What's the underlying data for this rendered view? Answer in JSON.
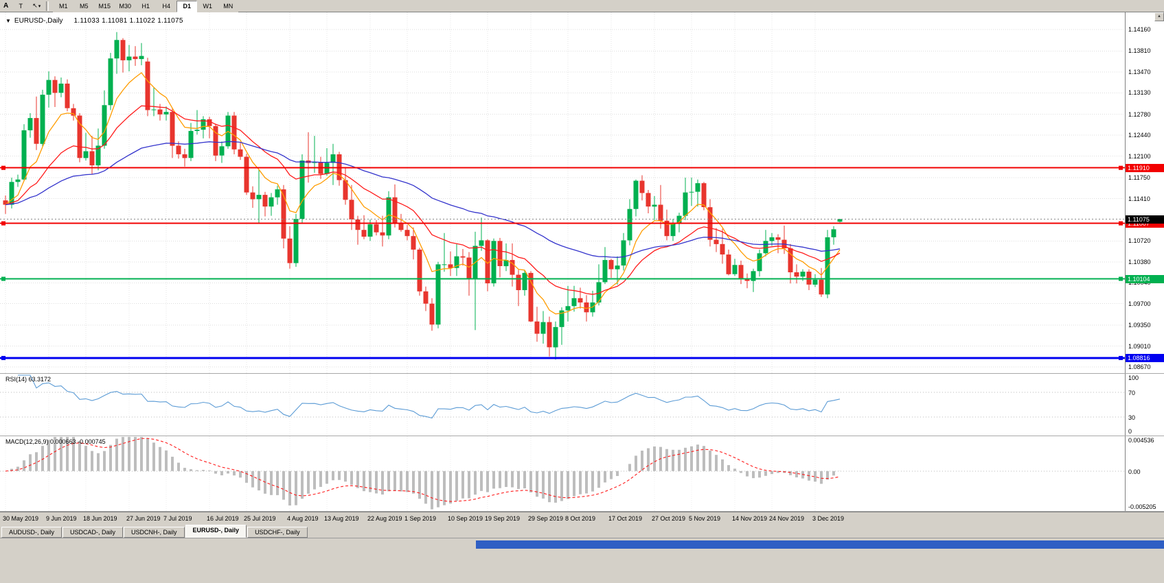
{
  "toolbar": {
    "icons": [
      {
        "name": "arrow-tool",
        "label": "A"
      },
      {
        "name": "type-tool",
        "label": "T"
      },
      {
        "name": "cursor-tool",
        "label": "↖"
      }
    ],
    "dropdown_glyph": "▾",
    "timeframes": [
      "M1",
      "M5",
      "M15",
      "M30",
      "H1",
      "H4",
      "D1",
      "W1",
      "MN"
    ],
    "active_timeframe": "D1"
  },
  "chart": {
    "collapse_icon": "▼",
    "symbol_label": "EURUSD-,Daily",
    "quote": "1.11033 1.11081 1.11022 1.11075",
    "current_price": "1.11075",
    "current_price_value": 1.11075,
    "axis_labels": [
      "1.14160",
      "1.13810",
      "1.13470",
      "1.13130",
      "1.12780",
      "1.12440",
      "1.12100",
      "1.11750",
      "1.11410",
      "1.10720",
      "1.10380",
      "1.10040",
      "1.09700",
      "1.09350",
      "1.09010",
      "1.08670"
    ],
    "hlines": [
      {
        "value": 1.1191,
        "label": "1.11910",
        "color": "#f20000",
        "width": 2
      },
      {
        "value": 1.11007,
        "label": "1.11007",
        "color": "#f20000",
        "width": 2
      },
      {
        "value": 1.10104,
        "label": "1.10104",
        "color": "#00b050",
        "width": 2
      },
      {
        "value": 1.08816,
        "label": "1.08816",
        "color": "#0000f0",
        "width": 3
      }
    ]
  },
  "chart_data": {
    "type": "candlestick",
    "symbol": "EURUSD",
    "timeframe": "Daily",
    "ylim": [
      1.0857,
      1.1444
    ],
    "up_color": "#00b050",
    "down_color": "#e8352e",
    "x_labels": [
      "30 May 2019",
      "9 Jun 2019",
      "18 Jun 2019",
      "27 Jun 2019",
      "7 Jul 2019",
      "16 Jul 2019",
      "25 Jul 2019",
      "4 Aug 2019",
      "13 Aug 2019",
      "22 Aug 2019",
      "1 Sep 2019",
      "10 Sep 2019",
      "19 Sep 2019",
      "29 Sep 2019",
      "8 Oct 2019",
      "17 Oct 2019",
      "27 Oct 2019",
      "5 Nov 2019",
      "14 Nov 2019",
      "24 Nov 2019",
      "3 Dec 2019"
    ],
    "x_label_indices": [
      0,
      7,
      13,
      20,
      26,
      33,
      39,
      46,
      52,
      59,
      65,
      72,
      78,
      85,
      91,
      98,
      105,
      111,
      118,
      124,
      131
    ],
    "overlays": [
      {
        "name": "ma-fast",
        "type": "ema",
        "period": 8,
        "color": "#ff9c00"
      },
      {
        "name": "ma-mid",
        "type": "ema",
        "period": 21,
        "color": "#ff1a1a"
      },
      {
        "name": "ma-slow",
        "type": "ema",
        "period": 55,
        "color": "#3333cc"
      }
    ],
    "candles": [
      [
        1.1138,
        1.1146,
        1.1116,
        1.1131
      ],
      [
        1.1131,
        1.1175,
        1.1125,
        1.1168
      ],
      [
        1.1168,
        1.118,
        1.116,
        1.1172
      ],
      [
        1.1172,
        1.1262,
        1.117,
        1.1252
      ],
      [
        1.1252,
        1.128,
        1.124,
        1.1272
      ],
      [
        1.1272,
        1.1307,
        1.122,
        1.123
      ],
      [
        1.123,
        1.1318,
        1.1225,
        1.131
      ],
      [
        1.131,
        1.1348,
        1.1289,
        1.1334
      ],
      [
        1.1334,
        1.134,
        1.129,
        1.1313
      ],
      [
        1.1313,
        1.1338,
        1.1306,
        1.1328
      ],
      [
        1.1328,
        1.1335,
        1.1283,
        1.1288
      ],
      [
        1.1288,
        1.1295,
        1.1268,
        1.1276
      ],
      [
        1.1276,
        1.128,
        1.12,
        1.1207
      ],
      [
        1.1207,
        1.1248,
        1.1203,
        1.1218
      ],
      [
        1.1218,
        1.1243,
        1.1181,
        1.1195
      ],
      [
        1.1195,
        1.1255,
        1.1187,
        1.1227
      ],
      [
        1.1227,
        1.1317,
        1.1222,
        1.1293
      ],
      [
        1.1293,
        1.1378,
        1.1285,
        1.1369
      ],
      [
        1.1369,
        1.1412,
        1.1344,
        1.1399
      ],
      [
        1.1399,
        1.1402,
        1.1346,
        1.1366
      ],
      [
        1.1366,
        1.1391,
        1.1348,
        1.1372
      ],
      [
        1.1372,
        1.1389,
        1.1357,
        1.1368
      ],
      [
        1.1368,
        1.1394,
        1.1358,
        1.1373
      ],
      [
        1.1364,
        1.137,
        1.1275,
        1.1285
      ],
      [
        1.1285,
        1.1322,
        1.1275,
        1.1286
      ],
      [
        1.1286,
        1.1295,
        1.1268,
        1.1278
      ],
      [
        1.1278,
        1.1291,
        1.1268,
        1.1282
      ],
      [
        1.1282,
        1.1288,
        1.1207,
        1.1227
      ],
      [
        1.1227,
        1.1234,
        1.1206,
        1.1213
      ],
      [
        1.1213,
        1.1222,
        1.1193,
        1.1207
      ],
      [
        1.1207,
        1.1264,
        1.1202,
        1.1251
      ],
      [
        1.1251,
        1.1285,
        1.1245,
        1.1253
      ],
      [
        1.1253,
        1.1275,
        1.1239,
        1.127
      ],
      [
        1.127,
        1.1274,
        1.1239,
        1.1259
      ],
      [
        1.1259,
        1.1263,
        1.1202,
        1.1211
      ],
      [
        1.1211,
        1.1234,
        1.1199,
        1.1226
      ],
      [
        1.1226,
        1.1282,
        1.1222,
        1.1276
      ],
      [
        1.1276,
        1.1282,
        1.1213,
        1.1221
      ],
      [
        1.1221,
        1.1232,
        1.1204,
        1.1209
      ],
      [
        1.1209,
        1.1214,
        1.1147,
        1.1151
      ],
      [
        1.1151,
        1.1161,
        1.1126,
        1.114
      ],
      [
        1.114,
        1.1188,
        1.1101,
        1.1147
      ],
      [
        1.1147,
        1.1152,
        1.1112,
        1.1128
      ],
      [
        1.1128,
        1.115,
        1.1113,
        1.1143
      ],
      [
        1.1143,
        1.1162,
        1.1131,
        1.1156
      ],
      [
        1.1156,
        1.1163,
        1.106,
        1.1076
      ],
      [
        1.1076,
        1.1096,
        1.1027,
        1.1036
      ],
      [
        1.1036,
        1.1116,
        1.103,
        1.1108
      ],
      [
        1.1108,
        1.1213,
        1.1102,
        1.1203
      ],
      [
        1.1203,
        1.1249,
        1.1167,
        1.1199
      ],
      [
        1.1199,
        1.1243,
        1.1183,
        1.12
      ],
      [
        1.12,
        1.1209,
        1.1173,
        1.1181
      ],
      [
        1.1181,
        1.1223,
        1.1178,
        1.1199
      ],
      [
        1.1199,
        1.123,
        1.1163,
        1.1213
      ],
      [
        1.1213,
        1.1217,
        1.1162,
        1.1171
      ],
      [
        1.1171,
        1.1192,
        1.1131,
        1.1139
      ],
      [
        1.1139,
        1.1163,
        1.109,
        1.1107
      ],
      [
        1.1107,
        1.1113,
        1.1066,
        1.109
      ],
      [
        1.109,
        1.1114,
        1.1075,
        1.1079
      ],
      [
        1.1079,
        1.1107,
        1.1072,
        1.1099
      ],
      [
        1.1099,
        1.1106,
        1.1081,
        1.1086
      ],
      [
        1.1086,
        1.1113,
        1.1063,
        1.1081
      ],
      [
        1.1081,
        1.1153,
        1.1075,
        1.1143
      ],
      [
        1.1143,
        1.1164,
        1.1094,
        1.1101
      ],
      [
        1.1101,
        1.1116,
        1.1087,
        1.109
      ],
      [
        1.109,
        1.1098,
        1.1073,
        1.108
      ],
      [
        1.108,
        1.1094,
        1.1042,
        1.1058
      ],
      [
        1.1058,
        1.1061,
        1.0983,
        1.099
      ],
      [
        1.099,
        1.0998,
        1.0958,
        1.097
      ],
      [
        1.097,
        1.0979,
        1.0926,
        1.0936
      ],
      [
        1.0936,
        1.1038,
        1.093,
        1.1034
      ],
      [
        1.1034,
        1.1085,
        1.1022,
        1.1034
      ],
      [
        1.1034,
        1.1055,
        1.1015,
        1.1028
      ],
      [
        1.1028,
        1.1067,
        1.1015,
        1.1047
      ],
      [
        1.1047,
        1.1059,
        1.1032,
        1.1045
      ],
      [
        1.1045,
        1.1054,
        1.0983,
        1.1011
      ],
      [
        1.1011,
        1.1087,
        1.0927,
        1.1064
      ],
      [
        1.1064,
        1.111,
        1.1056,
        1.1073
      ],
      [
        1.1073,
        1.1075,
        1.099,
        1.1003
      ],
      [
        1.1003,
        1.1076,
        1.0998,
        1.1072
      ],
      [
        1.1072,
        1.1077,
        1.1013,
        1.1031
      ],
      [
        1.1031,
        1.1068,
        1.1023,
        1.1041
      ],
      [
        1.1041,
        1.1068,
        1.0998,
        1.1017
      ],
      [
        1.1017,
        1.1025,
        1.0966,
        1.0992
      ],
      [
        1.0992,
        1.1024,
        1.0983,
        1.102
      ],
      [
        1.102,
        1.1023,
        1.094,
        1.0941
      ],
      [
        1.0941,
        1.0965,
        1.0908,
        1.0921
      ],
      [
        1.0921,
        1.0958,
        1.0905,
        1.094
      ],
      [
        1.094,
        1.0949,
        1.0884,
        1.0899
      ],
      [
        1.0899,
        1.0941,
        1.0879,
        1.0932
      ],
      [
        1.0932,
        1.0964,
        1.0903,
        1.0959
      ],
      [
        1.0959,
        1.0999,
        1.0941,
        1.0966
      ],
      [
        1.0966,
        1.0999,
        1.0957,
        1.0979
      ],
      [
        1.0979,
        1.0996,
        1.0962,
        1.0972
      ],
      [
        1.0972,
        1.0984,
        1.0941,
        1.0956
      ],
      [
        1.0956,
        1.0991,
        1.0949,
        1.0972
      ],
      [
        1.0972,
        1.1034,
        1.0967,
        1.1005
      ],
      [
        1.1005,
        1.1062,
        1.1002,
        1.1041
      ],
      [
        1.1041,
        1.1043,
        1.1012,
        1.1026
      ],
      [
        1.1026,
        1.1047,
        1.1001,
        1.1032
      ],
      [
        1.1032,
        1.1085,
        1.1024,
        1.1073
      ],
      [
        1.1073,
        1.114,
        1.1065,
        1.1124
      ],
      [
        1.1124,
        1.1172,
        1.1112,
        1.117
      ],
      [
        1.117,
        1.1179,
        1.1138,
        1.115
      ],
      [
        1.115,
        1.1155,
        1.1117,
        1.1128
      ],
      [
        1.1128,
        1.1145,
        1.1106,
        1.1131
      ],
      [
        1.1131,
        1.1163,
        1.1092,
        1.1105
      ],
      [
        1.1105,
        1.1123,
        1.1073,
        1.108
      ],
      [
        1.108,
        1.1108,
        1.1072,
        1.11
      ],
      [
        1.11,
        1.1118,
        1.1086,
        1.1113
      ],
      [
        1.1113,
        1.1175,
        1.1106,
        1.1151
      ],
      [
        1.1151,
        1.1175,
        1.1129,
        1.1152
      ],
      [
        1.1152,
        1.1172,
        1.1128,
        1.1166
      ],
      [
        1.1166,
        1.1168,
        1.1122,
        1.1127
      ],
      [
        1.1127,
        1.114,
        1.1063,
        1.1074
      ],
      [
        1.1074,
        1.1093,
        1.1054,
        1.1067
      ],
      [
        1.1067,
        1.1092,
        1.1035,
        1.105
      ],
      [
        1.105,
        1.1058,
        1.1016,
        1.1018
      ],
      [
        1.1018,
        1.1043,
        1.1015,
        1.1033
      ],
      [
        1.1033,
        1.104,
        1.1002,
        1.101
      ],
      [
        1.101,
        1.1019,
        1.0995,
        1.1007
      ],
      [
        1.1007,
        1.1027,
        1.0989,
        1.1023
      ],
      [
        1.1023,
        1.1058,
        1.1014,
        1.1052
      ],
      [
        1.1052,
        1.109,
        1.1047,
        1.1072
      ],
      [
        1.1072,
        1.1085,
        1.1064,
        1.1078
      ],
      [
        1.1078,
        1.1083,
        1.1052,
        1.1074
      ],
      [
        1.1074,
        1.1097,
        1.1051,
        1.106
      ],
      [
        1.106,
        1.1067,
        1.1003,
        1.1021
      ],
      [
        1.1021,
        1.1034,
        1.1003,
        1.1014
      ],
      [
        1.1014,
        1.1026,
        1.1007,
        1.1022
      ],
      [
        1.1022,
        1.1026,
        1.0992,
        1.1001
      ],
      [
        1.1001,
        1.1018,
        1.0997,
        1.1009
      ],
      [
        1.1009,
        1.1028,
        1.0981,
        1.0985
      ],
      [
        1.0985,
        1.109,
        1.0979,
        1.1078
      ],
      [
        1.1078,
        1.1096,
        1.1066,
        1.1091
      ],
      [
        1.11033,
        1.11081,
        1.11022,
        1.11075
      ]
    ]
  },
  "rsi": {
    "label": "RSI(14) 63.3172",
    "period": 14,
    "levels": [
      70,
      30
    ],
    "axis_labels": [
      "100",
      "70",
      "30",
      "0"
    ],
    "ylim": [
      0,
      100
    ],
    "line_color": "#5b9bd5"
  },
  "macd": {
    "label": "MACD(12,26,9) 0.000663 -0.000745",
    "fast": 12,
    "slow": 26,
    "signal": 9,
    "axis_labels": [
      "0.004536",
      "0.00",
      "-0.005205"
    ],
    "ylim": [
      -0.005205,
      0.004536
    ],
    "histogram_color": "#bdbdbd",
    "signal_color": "#ff1a1a"
  },
  "tabs": [
    {
      "label": "AUDUSD-, Daily",
      "active": false
    },
    {
      "label": "USDCAD-, Daily",
      "active": false
    },
    {
      "label": "USDCNH-, Daily",
      "active": false
    },
    {
      "label": "EURUSD-, Daily",
      "active": true
    },
    {
      "label": "USDCHF-, Daily",
      "active": false
    }
  ]
}
